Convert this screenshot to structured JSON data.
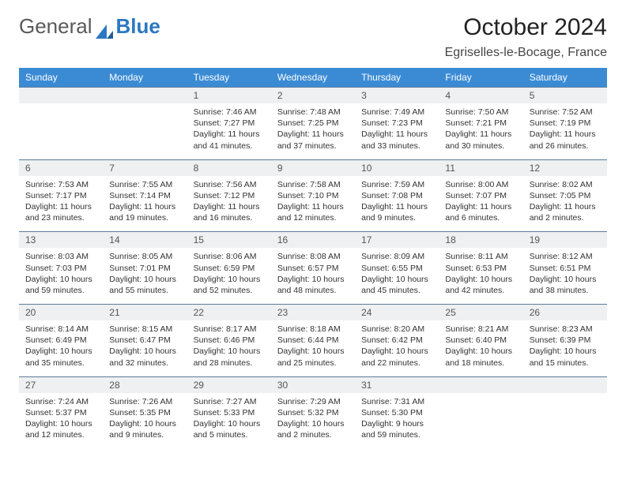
{
  "brand": {
    "part1": "General",
    "part2": "Blue"
  },
  "title": "October 2024",
  "location": "Egriselles-le-Bocage, France",
  "colors": {
    "header_bg": "#3b8bd4",
    "header_text": "#ffffff",
    "daynum_bg": "#eef0f1",
    "row_border": "#5b7c9c",
    "brand_blue": "#2b78c2"
  },
  "dayNames": [
    "Sunday",
    "Monday",
    "Tuesday",
    "Wednesday",
    "Thursday",
    "Friday",
    "Saturday"
  ],
  "weeks": [
    {
      "nums": [
        "",
        "",
        "1",
        "2",
        "3",
        "4",
        "5"
      ],
      "cells": [
        {},
        {},
        {
          "sunrise": "Sunrise: 7:46 AM",
          "sunset": "Sunset: 7:27 PM",
          "daylight": "Daylight: 11 hours and 41 minutes."
        },
        {
          "sunrise": "Sunrise: 7:48 AM",
          "sunset": "Sunset: 7:25 PM",
          "daylight": "Daylight: 11 hours and 37 minutes."
        },
        {
          "sunrise": "Sunrise: 7:49 AM",
          "sunset": "Sunset: 7:23 PM",
          "daylight": "Daylight: 11 hours and 33 minutes."
        },
        {
          "sunrise": "Sunrise: 7:50 AM",
          "sunset": "Sunset: 7:21 PM",
          "daylight": "Daylight: 11 hours and 30 minutes."
        },
        {
          "sunrise": "Sunrise: 7:52 AM",
          "sunset": "Sunset: 7:19 PM",
          "daylight": "Daylight: 11 hours and 26 minutes."
        }
      ]
    },
    {
      "nums": [
        "6",
        "7",
        "8",
        "9",
        "10",
        "11",
        "12"
      ],
      "cells": [
        {
          "sunrise": "Sunrise: 7:53 AM",
          "sunset": "Sunset: 7:17 PM",
          "daylight": "Daylight: 11 hours and 23 minutes."
        },
        {
          "sunrise": "Sunrise: 7:55 AM",
          "sunset": "Sunset: 7:14 PM",
          "daylight": "Daylight: 11 hours and 19 minutes."
        },
        {
          "sunrise": "Sunrise: 7:56 AM",
          "sunset": "Sunset: 7:12 PM",
          "daylight": "Daylight: 11 hours and 16 minutes."
        },
        {
          "sunrise": "Sunrise: 7:58 AM",
          "sunset": "Sunset: 7:10 PM",
          "daylight": "Daylight: 11 hours and 12 minutes."
        },
        {
          "sunrise": "Sunrise: 7:59 AM",
          "sunset": "Sunset: 7:08 PM",
          "daylight": "Daylight: 11 hours and 9 minutes."
        },
        {
          "sunrise": "Sunrise: 8:00 AM",
          "sunset": "Sunset: 7:07 PM",
          "daylight": "Daylight: 11 hours and 6 minutes."
        },
        {
          "sunrise": "Sunrise: 8:02 AM",
          "sunset": "Sunset: 7:05 PM",
          "daylight": "Daylight: 11 hours and 2 minutes."
        }
      ]
    },
    {
      "nums": [
        "13",
        "14",
        "15",
        "16",
        "17",
        "18",
        "19"
      ],
      "cells": [
        {
          "sunrise": "Sunrise: 8:03 AM",
          "sunset": "Sunset: 7:03 PM",
          "daylight": "Daylight: 10 hours and 59 minutes."
        },
        {
          "sunrise": "Sunrise: 8:05 AM",
          "sunset": "Sunset: 7:01 PM",
          "daylight": "Daylight: 10 hours and 55 minutes."
        },
        {
          "sunrise": "Sunrise: 8:06 AM",
          "sunset": "Sunset: 6:59 PM",
          "daylight": "Daylight: 10 hours and 52 minutes."
        },
        {
          "sunrise": "Sunrise: 8:08 AM",
          "sunset": "Sunset: 6:57 PM",
          "daylight": "Daylight: 10 hours and 48 minutes."
        },
        {
          "sunrise": "Sunrise: 8:09 AM",
          "sunset": "Sunset: 6:55 PM",
          "daylight": "Daylight: 10 hours and 45 minutes."
        },
        {
          "sunrise": "Sunrise: 8:11 AM",
          "sunset": "Sunset: 6:53 PM",
          "daylight": "Daylight: 10 hours and 42 minutes."
        },
        {
          "sunrise": "Sunrise: 8:12 AM",
          "sunset": "Sunset: 6:51 PM",
          "daylight": "Daylight: 10 hours and 38 minutes."
        }
      ]
    },
    {
      "nums": [
        "20",
        "21",
        "22",
        "23",
        "24",
        "25",
        "26"
      ],
      "cells": [
        {
          "sunrise": "Sunrise: 8:14 AM",
          "sunset": "Sunset: 6:49 PM",
          "daylight": "Daylight: 10 hours and 35 minutes."
        },
        {
          "sunrise": "Sunrise: 8:15 AM",
          "sunset": "Sunset: 6:47 PM",
          "daylight": "Daylight: 10 hours and 32 minutes."
        },
        {
          "sunrise": "Sunrise: 8:17 AM",
          "sunset": "Sunset: 6:46 PM",
          "daylight": "Daylight: 10 hours and 28 minutes."
        },
        {
          "sunrise": "Sunrise: 8:18 AM",
          "sunset": "Sunset: 6:44 PM",
          "daylight": "Daylight: 10 hours and 25 minutes."
        },
        {
          "sunrise": "Sunrise: 8:20 AM",
          "sunset": "Sunset: 6:42 PM",
          "daylight": "Daylight: 10 hours and 22 minutes."
        },
        {
          "sunrise": "Sunrise: 8:21 AM",
          "sunset": "Sunset: 6:40 PM",
          "daylight": "Daylight: 10 hours and 18 minutes."
        },
        {
          "sunrise": "Sunrise: 8:23 AM",
          "sunset": "Sunset: 6:39 PM",
          "daylight": "Daylight: 10 hours and 15 minutes."
        }
      ]
    },
    {
      "nums": [
        "27",
        "28",
        "29",
        "30",
        "31",
        "",
        ""
      ],
      "cells": [
        {
          "sunrise": "Sunrise: 7:24 AM",
          "sunset": "Sunset: 5:37 PM",
          "daylight": "Daylight: 10 hours and 12 minutes."
        },
        {
          "sunrise": "Sunrise: 7:26 AM",
          "sunset": "Sunset: 5:35 PM",
          "daylight": "Daylight: 10 hours and 9 minutes."
        },
        {
          "sunrise": "Sunrise: 7:27 AM",
          "sunset": "Sunset: 5:33 PM",
          "daylight": "Daylight: 10 hours and 5 minutes."
        },
        {
          "sunrise": "Sunrise: 7:29 AM",
          "sunset": "Sunset: 5:32 PM",
          "daylight": "Daylight: 10 hours and 2 minutes."
        },
        {
          "sunrise": "Sunrise: 7:31 AM",
          "sunset": "Sunset: 5:30 PM",
          "daylight": "Daylight: 9 hours and 59 minutes."
        },
        {},
        {}
      ]
    }
  ]
}
